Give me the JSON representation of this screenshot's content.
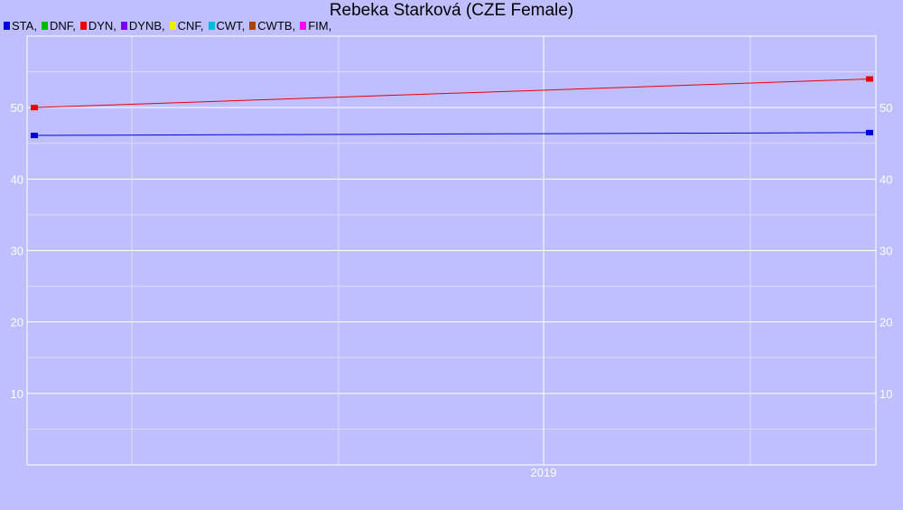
{
  "colors": {
    "background": "#bfbfff",
    "grid_major": "#ffffff",
    "grid_minor": "#dcdcff"
  },
  "chart_data": {
    "type": "line",
    "title": "Rebeka Starková (CZE Female)",
    "xlabel": "",
    "ylabel": "",
    "x_tick_labels": [
      "2019"
    ],
    "y_ticks": [
      10,
      20,
      30,
      40,
      50
    ],
    "ylim": [
      0,
      60
    ],
    "grid": true,
    "legend_position": "top-left",
    "legend": [
      {
        "label": "STA,",
        "color": "#0000dd"
      },
      {
        "label": "DNF,",
        "color": "#00bb00"
      },
      {
        "label": "DYN,",
        "color": "#ee0000"
      },
      {
        "label": "DYNB,",
        "color": "#7a00ee"
      },
      {
        "label": "CNF,",
        "color": "#eeee00"
      },
      {
        "label": "CWT,",
        "color": "#00bbdd"
      },
      {
        "label": "CWTB,",
        "color": "#aa4400"
      },
      {
        "label": "FIM,",
        "color": "#ff00ff"
      }
    ],
    "series": [
      {
        "name": "STA",
        "color": "#0000dd",
        "values": [
          46.1,
          46.5
        ]
      },
      {
        "name": "DYN",
        "color": "#ee0000",
        "values": [
          50,
          54
        ]
      }
    ]
  }
}
